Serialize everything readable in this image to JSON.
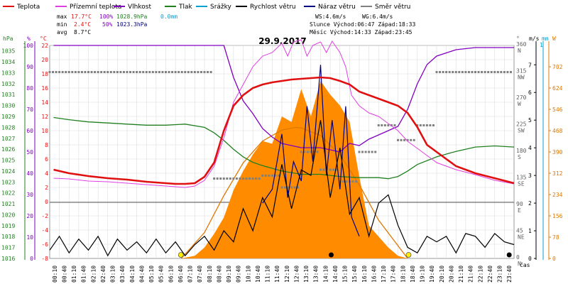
{
  "header": {
    "legend": [
      {
        "label": "Teplota",
        "color": "#e01010"
      },
      {
        "label": "Přízemní teplota",
        "color": "#e040e0"
      },
      {
        "label": "Vlhkost",
        "color": "#8000c0"
      },
      {
        "label": "Tlak",
        "color": "#208020"
      },
      {
        "label": "Srážky",
        "color": "#00a0d0"
      },
      {
        "label": "Rychlost větru",
        "color": "#000000"
      },
      {
        "label": "Náraz větru",
        "color": "#000080"
      },
      {
        "label": "Směr větru",
        "color": "#808080"
      }
    ],
    "stats": {
      "max_label": "max",
      "max_temp": "17.7°C",
      "max_hum": "100%",
      "max_press": "1028.9hPa",
      "max_rain": "0.0mm",
      "min_label": "min",
      "min_temp": "2.4°C",
      "min_hum": "50%",
      "min_press": "1023.3hPa",
      "avg_label": "avg",
      "avg_temp": "8.7°C"
    },
    "wind_text": "WS:4.6m/s",
    "gust_text": "WG:6.4m/s",
    "sun_text": "Slunce Východ:06:47  Západ:18:33",
    "moon_text": "Měsíc  Východ:14:33  Západ:23:45",
    "date": "29.9.2017"
  },
  "axes": {
    "hpa_unit": "hPa",
    "pct_unit": "%",
    "temp_unit": "°C",
    "deg_unit": "°",
    "ms_unit": "m/s",
    "mm_unit": "mm",
    "w_unit": "W",
    "time_label": "čas",
    "mm_value": "1",
    "hpa_ticks": [
      "1035",
      "1034",
      "1033",
      "1032",
      "1031",
      "1030",
      "1029",
      "1028",
      "1027",
      "1026",
      "1025",
      "1024",
      "1023",
      "1022",
      "1021",
      "1020",
      "1019",
      "1018",
      "1017",
      "1016"
    ],
    "pct_ticks": [
      "100",
      "90",
      "80",
      "70",
      "60",
      "50",
      "40",
      "30",
      "20",
      "10",
      "0"
    ],
    "temp_ticks": [
      "22",
      "20",
      "18",
      "16",
      "14",
      "12",
      "10",
      "8",
      "6",
      "4",
      "2",
      "0",
      "-2",
      "-4",
      "-6",
      "-8"
    ],
    "dir_ticks": [
      "360 N",
      "315 NW",
      "270 W",
      "225 SW",
      "180 S",
      "135 SE",
      "90 E",
      "45 NE",
      "0 N"
    ],
    "ms_ticks": [
      "7",
      "6",
      "5",
      "4",
      "3",
      "2",
      "1",
      "0"
    ],
    "w_ticks": [
      "702",
      "624",
      "546",
      "468",
      "390",
      "312",
      "234",
      "156",
      "78",
      "0"
    ],
    "x_ticks": [
      "00:10",
      "00:40",
      "01:10",
      "01:40",
      "02:10",
      "02:40",
      "03:10",
      "03:40",
      "04:10",
      "04:40",
      "05:10",
      "05:40",
      "06:10",
      "06:40",
      "07:10",
      "07:40",
      "08:10",
      "08:40",
      "09:10",
      "09:40",
      "10:10",
      "10:40",
      "11:10",
      "11:40",
      "12:10",
      "12:40",
      "13:10",
      "13:40",
      "14:10",
      "14:40",
      "15:10",
      "15:40",
      "16:10",
      "16:40",
      "17:10",
      "17:40",
      "18:10",
      "18:40",
      "19:10",
      "19:40",
      "20:10",
      "20:40",
      "21:10",
      "21:40",
      "22:10",
      "22:40",
      "23:10",
      "23:40"
    ]
  },
  "chart_data": {
    "type": "line",
    "title": "29.9.2017",
    "xlabel": "čas",
    "x_range_hours": [
      0,
      24
    ],
    "temperature_c": {
      "hours": [
        0.2,
        1,
        2,
        3,
        4,
        5,
        6,
        6.5,
        7,
        7.5,
        8,
        8.5,
        9,
        9.5,
        10,
        10.5,
        11,
        11.5,
        12,
        12.5,
        13,
        13.5,
        14,
        14.5,
        15,
        15.5,
        16,
        16.5,
        17,
        17.5,
        18,
        18.5,
        19,
        19.5,
        20,
        20.5,
        21,
        22,
        23,
        24
      ],
      "values": [
        4.5,
        4.0,
        3.6,
        3.3,
        3.1,
        2.8,
        2.6,
        2.5,
        2.5,
        2.6,
        3.5,
        5.5,
        10,
        13.5,
        15,
        16,
        16.5,
        16.8,
        17.0,
        17.2,
        17.3,
        17.4,
        17.5,
        17.4,
        17.0,
        16.5,
        15.5,
        15,
        14.5,
        14,
        13.5,
        12.5,
        10.5,
        8,
        7,
        6,
        5,
        4,
        3.3,
        2.6
      ]
    },
    "ground_temperature_c": {
      "hours": [
        0.2,
        1,
        2,
        3,
        4,
        5,
        6,
        6.5,
        7,
        7.5,
        8,
        8.5,
        9,
        9.5,
        10,
        10.5,
        11,
        11.5,
        12,
        12.3,
        12.6,
        13,
        13.3,
        13.6,
        14,
        14.3,
        14.6,
        15,
        15.3,
        15.6,
        16,
        16.5,
        17,
        17.5,
        18,
        18.5,
        19,
        19.5,
        20,
        21,
        22,
        23,
        24
      ],
      "values": [
        3.3,
        3.2,
        2.9,
        2.8,
        2.6,
        2.4,
        2.2,
        2.1,
        2.0,
        2.2,
        3.0,
        5.0,
        9.0,
        14.0,
        16.5,
        19.0,
        20.5,
        21.0,
        22.3,
        20.5,
        22.5,
        22.8,
        20.5,
        22.0,
        22.5,
        21.0,
        22.6,
        21.0,
        19.0,
        15.0,
        13.5,
        12.5,
        12.0,
        11.0,
        10.0,
        8.5,
        7.5,
        6.5,
        5.5,
        4.5,
        3.8,
        3.0,
        2.5
      ]
    },
    "humidity_pct": {
      "hours": [
        0.2,
        1,
        3,
        5,
        7,
        8,
        9,
        9.5,
        10,
        10.5,
        11,
        11.5,
        12,
        12.5,
        13,
        13.5,
        14,
        14.5,
        15,
        15.5,
        16,
        16.5,
        17,
        17.5,
        18,
        18.5,
        19,
        19.5,
        20,
        21,
        22,
        23,
        24
      ],
      "values": [
        100,
        100,
        100,
        100,
        100,
        100,
        100,
        85,
        74,
        68,
        61,
        57,
        54,
        53,
        52,
        52,
        52,
        51,
        50,
        54,
        53,
        56,
        58,
        60,
        62,
        70,
        82,
        91,
        95,
        98,
        99,
        99,
        99
      ]
    },
    "pressure_hpa": {
      "hours": [
        0.2,
        1,
        2,
        3,
        4,
        5,
        6,
        7,
        8,
        8.5,
        9,
        9.5,
        10,
        10.5,
        11,
        12,
        13,
        14,
        15,
        16,
        17,
        17.5,
        18,
        18.5,
        19,
        20,
        21,
        22,
        23,
        24
      ],
      "values": [
        1028.9,
        1028.7,
        1028.5,
        1028.4,
        1028.3,
        1028.2,
        1028.2,
        1028.3,
        1028.0,
        1027.5,
        1026.8,
        1026.0,
        1025.3,
        1024.8,
        1024.5,
        1024.0,
        1023.7,
        1023.7,
        1023.5,
        1023.4,
        1023.4,
        1023.3,
        1023.5,
        1024.0,
        1024.6,
        1025.3,
        1025.8,
        1026.2,
        1026.3,
        1026.2
      ]
    },
    "wind_speed_ms": {
      "hours": [
        0,
        0.5,
        1,
        1.5,
        2,
        2.5,
        3,
        3.5,
        4,
        4.5,
        5,
        5.5,
        6,
        6.5,
        7,
        7.5,
        8,
        8.5,
        9,
        9.5,
        10,
        10.5,
        11,
        11.5,
        12,
        12.5,
        13,
        13.5,
        14,
        14.5,
        15,
        15.5,
        16,
        16.5,
        17,
        17.5,
        18,
        18.5,
        19,
        19.5,
        20,
        20.5,
        21,
        21.5,
        22,
        22.5,
        23,
        23.5,
        24
      ],
      "values": [
        0.3,
        0.8,
        0.2,
        0.7,
        0.3,
        0.8,
        0.1,
        0.7,
        0.3,
        0.6,
        0.2,
        0.7,
        0.2,
        0.6,
        0.1,
        0.5,
        0.8,
        0.3,
        1.0,
        0.6,
        1.8,
        1.0,
        2.2,
        1.5,
        3.4,
        1.8,
        3.2,
        3.0,
        5.0,
        2.2,
        4.0,
        1.6,
        2.2,
        0.8,
        2.0,
        2.3,
        1.2,
        0.4,
        0.2,
        0.8,
        0.6,
        0.8,
        0.2,
        0.9,
        0.8,
        0.4,
        0.9,
        0.6,
        0.5
      ]
    },
    "wind_gust_ms": {
      "hours": [
        11,
        11.5,
        12,
        12.3,
        12.6,
        13,
        13.3,
        13.6,
        14,
        14.3,
        14.6,
        15,
        15.3,
        15.6,
        16
      ],
      "values": [
        2.0,
        2.5,
        4.5,
        2.2,
        3.5,
        2.8,
        5.5,
        3.5,
        7.0,
        3.0,
        5.0,
        2.5,
        5.5,
        1.5,
        0.8
      ]
    },
    "wind_direction_deg": {
      "hours": [
        0,
        1,
        2,
        3,
        4,
        5,
        6,
        7,
        8,
        8.5,
        9,
        9.5,
        10,
        10.5,
        11,
        12,
        13,
        14,
        15,
        16,
        17,
        18,
        19,
        20,
        21,
        22,
        23,
        24
      ],
      "values": [
        315,
        315,
        315,
        315,
        315,
        315,
        315,
        315,
        315,
        135,
        135,
        135,
        135,
        135,
        140,
        120,
        180,
        150,
        130,
        180,
        225,
        200,
        225,
        315,
        315,
        315,
        315,
        315
      ]
    },
    "solar_radiation_w": {
      "hours": [
        6.8,
        7.5,
        8,
        8.5,
        9,
        9.5,
        10,
        10.5,
        11,
        11.5,
        12,
        12.5,
        13,
        13.5,
        14,
        14.5,
        15,
        15.5,
        16,
        16.5,
        17,
        17.5,
        18,
        18.5
      ],
      "values": [
        0,
        10,
        40,
        90,
        150,
        250,
        320,
        380,
        430,
        420,
        520,
        500,
        620,
        520,
        650,
        600,
        560,
        500,
        300,
        120,
        80,
        40,
        10,
        0
      ]
    },
    "theoretical_solar_w": {
      "hours": [
        6.8,
        8,
        9,
        10,
        11,
        12,
        12.7,
        13,
        14,
        15,
        16,
        17,
        18.5
      ],
      "values": [
        0,
        95,
        230,
        350,
        430,
        470,
        480,
        478,
        450,
        380,
        270,
        140,
        0
      ]
    },
    "sunrise_h": 6.78,
    "sunset_h": 18.55,
    "moonrise_h": 14.55,
    "moonset_h": 23.75
  }
}
